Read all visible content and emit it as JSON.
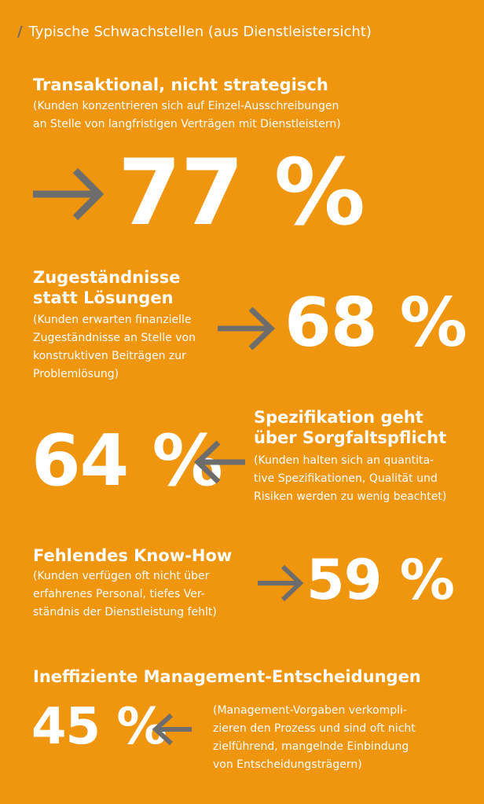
{
  "header": {
    "text": "Typische Schwachstellen (aus Dienstleistersicht)"
  },
  "colors": {
    "background": "#f0950e",
    "arrow": "#6d6d6d",
    "text": "#ffffff"
  },
  "items": [
    {
      "title_lines": [
        "Transaktional, nicht strategisch"
      ],
      "desc_lines": [
        "(Kunden konzentrieren sich auf Einzel-Ausschreibungen",
        "an Stelle von langfristigen Verträgen mit Dienstleistern)"
      ],
      "value": "77 %",
      "arrow_direction": "right"
    },
    {
      "title_lines": [
        "Zugeständnisse",
        "statt Lösungen"
      ],
      "desc_lines": [
        "(Kunden erwarten finanzielle",
        "Zugeständnisse an Stelle von",
        "konstruktiven Beiträgen zur",
        "Problemlösung)"
      ],
      "value": "68 %",
      "arrow_direction": "right"
    },
    {
      "title_lines": [
        "Spezifikation geht",
        "über Sorgfaltspflicht"
      ],
      "desc_lines": [
        "(Kunden halten sich an quantita-",
        "tive Spezifikationen, Qualität und",
        "Risiken werden zu wenig beachtet)"
      ],
      "value": "64 %",
      "arrow_direction": "left"
    },
    {
      "title_lines": [
        "Fehlendes Know-How"
      ],
      "desc_lines": [
        "(Kunden verfügen oft nicht über",
        "erfahrenes Personal, tiefes Ver-",
        "ständnis der Dienstleistung fehlt)"
      ],
      "value": "59 %",
      "arrow_direction": "right"
    },
    {
      "title_lines": [
        "Ineffiziente Management-Entscheidungen"
      ],
      "desc_lines": [
        "(Management-Vorgaben verkompli-",
        "zieren den Prozess und sind oft nicht",
        "zielführend, mangelnde Einbindung",
        "von Entscheidungsträgern)"
      ],
      "value": "45 %",
      "arrow_direction": "left"
    }
  ]
}
